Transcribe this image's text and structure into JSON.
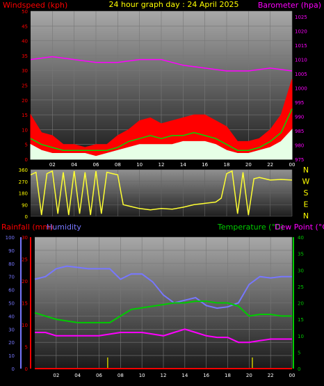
{
  "chart_data": [
    {
      "type": "line",
      "title": "24 hour graph day : 24 April 2025",
      "left_label": "Windspeed (kph)",
      "right_label": "Barometer (hpa)",
      "x_ticks": [
        "02",
        "04",
        "06",
        "08",
        "10",
        "12",
        "14",
        "16",
        "18",
        "20",
        "22",
        "00"
      ],
      "y_left_ticks": [
        0,
        5,
        10,
        15,
        20,
        25,
        30,
        35,
        40,
        45,
        50
      ],
      "y_left_range": [
        0,
        50
      ],
      "y_right_ticks": [
        975,
        980,
        985,
        990,
        995,
        1000,
        1005,
        1010,
        1015,
        1020,
        1025
      ],
      "y_right_range": [
        975,
        1027
      ],
      "series": [
        {
          "axis": "right",
          "color": "#ff00ff",
          "x": [
            0,
            2,
            4,
            6,
            8,
            10,
            12,
            14,
            16,
            18,
            20,
            22,
            24
          ],
          "y": [
            1010,
            1011,
            1010,
            1009,
            1009,
            1010,
            1010,
            1008,
            1007,
            1006,
            1006,
            1007,
            1006
          ]
        },
        {
          "axis": "left",
          "color": "#ff0000",
          "style": "area",
          "x": [
            0,
            1,
            2,
            3,
            4,
            5,
            6,
            7,
            8,
            9,
            10,
            11,
            12,
            13,
            14,
            15,
            16,
            17,
            18,
            19,
            20,
            21,
            22,
            23,
            24
          ],
          "y": [
            15,
            9,
            8,
            5,
            5,
            4,
            5,
            5,
            8,
            10,
            13,
            14,
            12,
            13,
            14,
            15,
            15,
            13,
            11,
            6,
            6,
            7,
            10,
            15,
            27
          ]
        },
        {
          "axis": "left",
          "color": "#00dd00",
          "x": [
            0,
            1,
            2,
            3,
            4,
            5,
            6,
            7,
            8,
            9,
            10,
            11,
            12,
            13,
            14,
            15,
            16,
            17,
            18,
            19,
            20,
            21,
            22,
            23,
            24
          ],
          "y": [
            7,
            5,
            4,
            3,
            3,
            3,
            3,
            3,
            4,
            6,
            7,
            8,
            7,
            8,
            8,
            9,
            8,
            7,
            5,
            3,
            3,
            4,
            6,
            9,
            17
          ]
        },
        {
          "axis": "left",
          "color": "#e6ffe6",
          "style": "area",
          "x": [
            0,
            1,
            2,
            3,
            4,
            5,
            6,
            7,
            8,
            9,
            10,
            11,
            12,
            13,
            14,
            15,
            16,
            17,
            18,
            19,
            20,
            21,
            22,
            23,
            24
          ],
          "y": [
            5,
            3,
            2,
            2,
            2,
            2,
            1,
            2,
            3,
            4,
            5,
            5,
            5,
            5,
            6,
            6,
            6,
            5,
            3,
            2,
            2,
            3,
            4,
            6,
            10
          ]
        }
      ]
    },
    {
      "type": "line",
      "title": "",
      "y_ticks": [
        0,
        90,
        180,
        270,
        360
      ],
      "y_range": [
        0,
        360
      ],
      "compass": [
        "N",
        "W",
        "S",
        "E",
        "N"
      ],
      "series": [
        {
          "color": "#ffff33",
          "x": [
            0,
            0.5,
            1,
            1.5,
            2,
            2.5,
            3,
            3.5,
            4,
            4.5,
            5,
            5.5,
            6,
            6.5,
            7,
            7.5,
            8,
            8.5,
            9,
            9.5,
            10,
            11,
            12,
            13,
            14,
            15,
            16,
            17,
            17.5,
            18,
            18.5,
            19,
            19.5,
            20,
            20.5,
            21,
            21.5,
            22,
            23,
            24
          ],
          "y": [
            320,
            340,
            10,
            330,
            350,
            20,
            340,
            10,
            350,
            20,
            340,
            10,
            350,
            20,
            340,
            330,
            320,
            90,
            80,
            70,
            60,
            50,
            60,
            55,
            70,
            90,
            100,
            110,
            140,
            330,
            350,
            20,
            340,
            10,
            290,
            300,
            290,
            280,
            285,
            280
          ]
        }
      ]
    },
    {
      "type": "line",
      "title": "",
      "labels": [
        "Rainfall (mm)",
        "Humidity",
        "Temperature (°C)",
        "Dew Point (°C)"
      ],
      "humidity_ticks": [
        0,
        10,
        20,
        30,
        40,
        50,
        60,
        70,
        80,
        90,
        100
      ],
      "rain_ticks": [
        0,
        5,
        10,
        15,
        20,
        25,
        30
      ],
      "temp_ticks": [
        0,
        5,
        10,
        15,
        20,
        25,
        30,
        35,
        40
      ],
      "x_ticks": [
        "02",
        "04",
        "06",
        "08",
        "10",
        "12",
        "14",
        "16",
        "18",
        "20",
        "22",
        "00"
      ],
      "series": [
        {
          "name": "Humidity",
          "color": "#7777ff",
          "axis": "humidity",
          "x": [
            0,
            1,
            2,
            3,
            4,
            5,
            6,
            7,
            8,
            9,
            10,
            11,
            12,
            13,
            14,
            15,
            16,
            17,
            18,
            19,
            20,
            21,
            22,
            23,
            24
          ],
          "y": [
            68,
            70,
            76,
            78,
            77,
            76,
            76,
            76,
            68,
            72,
            72,
            66,
            56,
            50,
            52,
            54,
            48,
            46,
            47,
            50,
            64,
            70,
            69,
            70,
            70
          ]
        },
        {
          "name": "Temperature",
          "color": "#00cc00",
          "axis": "temp",
          "x": [
            0,
            1,
            2,
            3,
            4,
            5,
            6,
            7,
            8,
            9,
            10,
            11,
            12,
            13,
            14,
            15,
            16,
            17,
            18,
            19,
            20,
            21,
            22,
            23,
            24
          ],
          "y": [
            17,
            16,
            15,
            14.5,
            14,
            14,
            14,
            14,
            16,
            18,
            18.5,
            19,
            19.5,
            20,
            20,
            20.5,
            20.5,
            20,
            20,
            19,
            16,
            16.5,
            16.5,
            16,
            16
          ]
        },
        {
          "name": "Dew Point",
          "color": "#ff00ff",
          "axis": "temp",
          "x": [
            0,
            1,
            2,
            3,
            4,
            5,
            6,
            7,
            8,
            9,
            10,
            11,
            12,
            13,
            14,
            15,
            16,
            17,
            18,
            19,
            20,
            21,
            22,
            23,
            24
          ],
          "y": [
            11,
            11,
            10,
            10,
            10,
            10,
            10,
            10.5,
            11,
            11,
            11,
            10.5,
            10,
            11,
            12,
            11,
            10,
            9.5,
            9.5,
            8,
            8,
            8.5,
            9,
            9,
            9
          ]
        },
        {
          "name": "Rainfall",
          "color": "#ff0000",
          "axis": "rain",
          "x": [
            0,
            24
          ],
          "y": [
            0,
            0
          ]
        }
      ],
      "markers_x": [
        6.8,
        20.3
      ]
    }
  ],
  "colors": {
    "wind": "#ff0000",
    "baro": "#ff00ff",
    "title": "#ffff00",
    "compass": "#ffff00",
    "rain": "#ff0000",
    "humidity": "#7777ff",
    "temp": "#00cc00",
    "dew": "#ff00ff"
  }
}
